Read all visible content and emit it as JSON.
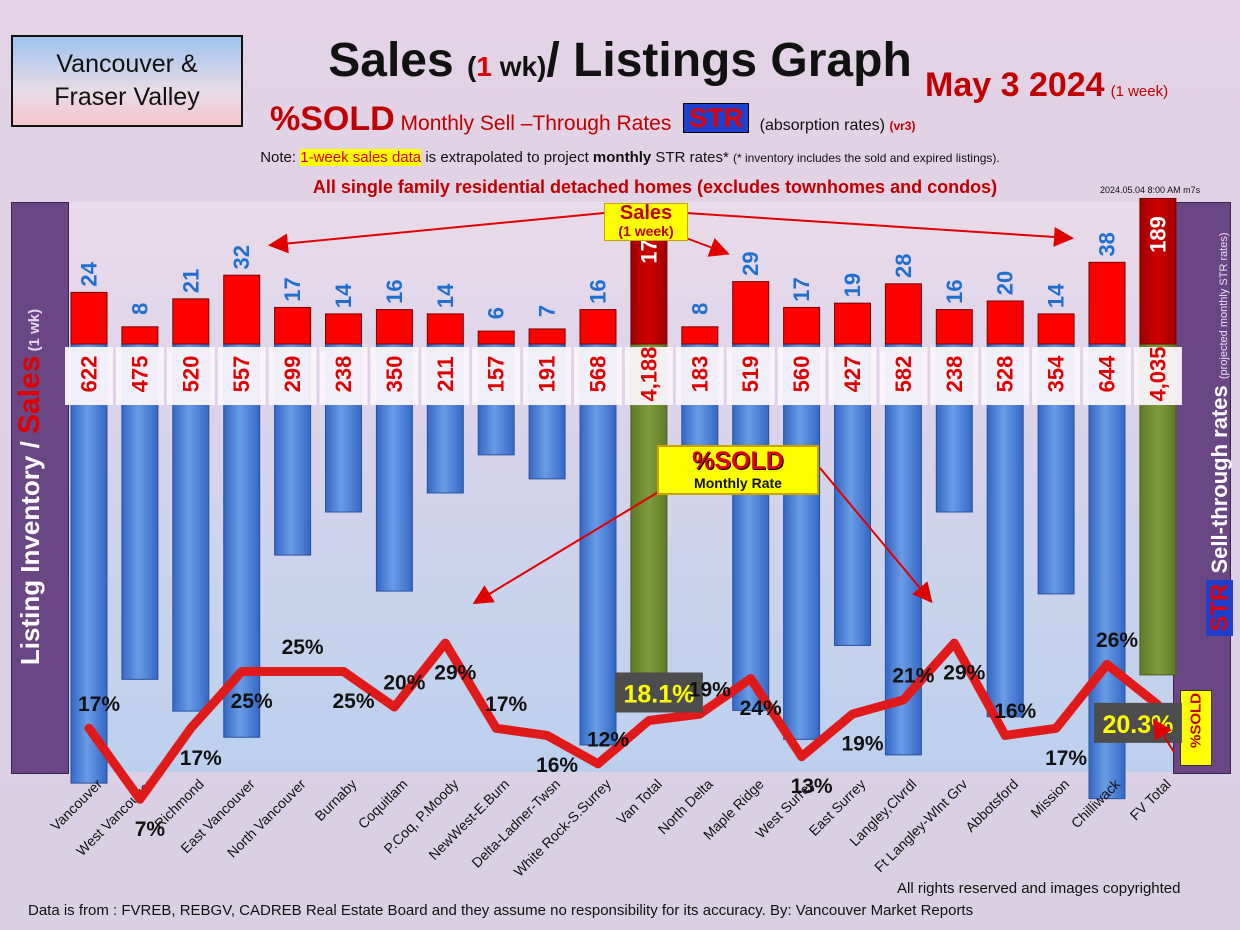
{
  "header": {
    "region_line1": "Vancouver &",
    "region_line2": "Fraser Valley",
    "title_a": "Sales ",
    "title_paren_open": "(",
    "title_one": "1",
    "title_wk": " wk)",
    "title_b": "/ Listings Graph",
    "date": "May 3  2024",
    "date_note": "(1 week)",
    "subtitle_sold": "%SOLD",
    "subtitle_rates": " Monthly Sell –Through Rates ",
    "subtitle_str": "STR",
    "subtitle_absorb": " (absorption rates) ",
    "subtitle_ver": "(vr3)",
    "note_prefix": "Note: ",
    "note_highlight": "1-week sales data",
    "note_mid": " is extrapolated to project ",
    "note_monthly": "monthly",
    "note_end": " STR rates* ",
    "note_small": "(* inventory includes the sold and expired listings).",
    "scope": "All single family residential detached homes (excludes townhomes and condos)",
    "timestamp": "2024.05.04 8:00 AM m7s"
  },
  "side_labels": {
    "left_main": "Listing Inventory",
    "left_slash": " / ",
    "left_sales": "Sales",
    "left_wk": " (1 wk)",
    "right_str": "STR",
    "right_main": " Sell-through rates ",
    "right_small": "(projected monthly STR rates)",
    "sold_tag": "%SOLD"
  },
  "callouts": {
    "sales_line1": "Sales",
    "sales_line2": "(1 week)",
    "sold_title": "%SOLD",
    "sold_sub": "Monthly Rate"
  },
  "footer": {
    "rights": "All rights reserved and  images copyrighted",
    "source": "Data is from : FVREB, REBGV, CADREB Real Estate Board and they assume no responsibility for its accuracy. By: Vancouver Market Reports"
  },
  "colors": {
    "sales_bar": "#ff0000",
    "sales_total_bar": "#c00000",
    "inventory_bar": "#4a7fd4",
    "total_inventory_bar": "#6f8c32",
    "sales_label": "#1f6fd1",
    "inventory_label": "#e00000",
    "str_line": "#e01a1a"
  },
  "chart_data": {
    "type": "bar",
    "categories": [
      "Vancouver",
      "West Vancouver",
      "Richmond",
      "East Vancouver",
      "North Vancouver",
      "Burnaby",
      "Coquitlam",
      "P.Coq, P.Moody",
      "NewWest-E.Burn",
      "Delta-Ladner-Twsn",
      "White Rock-S.Surrey",
      "Van Total",
      "North Delta",
      "Maple Ridge",
      "West Surrey",
      "East Surrey",
      "Langley,Clvrdl",
      "Ft Langley-Wlnt Grv",
      "Abbotsford",
      "Mission",
      "Chilliwack",
      "FV Total"
    ],
    "is_total": [
      false,
      false,
      false,
      false,
      false,
      false,
      false,
      false,
      false,
      false,
      false,
      true,
      false,
      false,
      false,
      false,
      false,
      false,
      false,
      false,
      false,
      true
    ],
    "series": [
      {
        "values": [
          24,
          8,
          21,
          32,
          17,
          14,
          16,
          14,
          6,
          7,
          16,
          175,
          8,
          29,
          17,
          19,
          28,
          16,
          20,
          14,
          38,
          189
        ]
      },
      {
        "values": [
          622,
          475,
          520,
          557,
          299,
          238,
          350,
          211,
          157,
          191,
          568,
          4188,
          183,
          519,
          560,
          427,
          582,
          238,
          528,
          354,
          644,
          4035
        ]
      },
      {
        "type": "line",
        "values": [
          17,
          7,
          17,
          25,
          25,
          25,
          20,
          29,
          17,
          16,
          12,
          18.1,
          19,
          24,
          13,
          19,
          21,
          29,
          16,
          17,
          26,
          20.3
        ]
      }
    ],
    "sales_labels": [
      "24",
      "8",
      "21",
      "32",
      "17",
      "14",
      "16",
      "14",
      "6",
      "7",
      "16",
      "175",
      "8",
      "29",
      "17",
      "19",
      "28",
      "16",
      "20",
      "14",
      "38",
      "189"
    ],
    "inventory_labels": [
      "622",
      "475",
      "520",
      "557",
      "299",
      "238",
      "350",
      "211",
      "157",
      "191",
      "568",
      "4,188",
      "183",
      "519",
      "560",
      "427",
      "582",
      "238",
      "528",
      "354",
      "644",
      "4,035"
    ],
    "str_labels": [
      "17%",
      "7%",
      "17%",
      "25%",
      "25%",
      "25%",
      "20%",
      "29%",
      "17%",
      "16%",
      "12%",
      "18.1%",
      "19%",
      "24%",
      "13%",
      "19%",
      "21%",
      "29%",
      "16%",
      "17%",
      "26%",
      "20.3%"
    ],
    "xlabel": "",
    "ylabel": "Listing Inventory / Sales (1 wk)",
    "y2label": "STR Sell-through rates (projected monthly STR rates)"
  }
}
